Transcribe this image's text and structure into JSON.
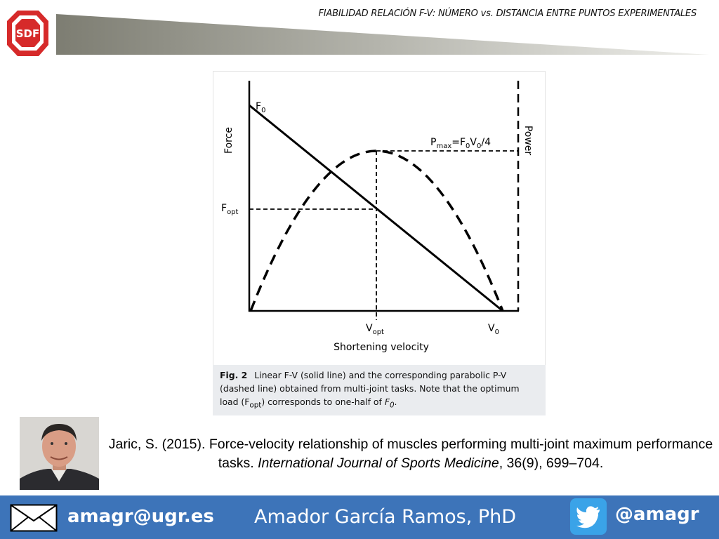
{
  "header": {
    "logo": "SDF",
    "title": "FIABILIDAD RELACIÓN F-V: NÚMERO vs. DISTANCIA ENTRE PUNTOS EXPERIMENTALES"
  },
  "figure": {
    "y_axis_label": "Force",
    "y2_axis_label": "Power",
    "x_axis_label": "Shortening velocity",
    "f0_label": [
      "F",
      "0"
    ],
    "fopt_label": [
      "F",
      "opt"
    ],
    "vopt_label": [
      "V",
      "opt"
    ],
    "v0_label": [
      "V",
      "0"
    ],
    "pmax_label": [
      "P",
      "max",
      "=F",
      "0",
      "V",
      "0",
      "/4"
    ],
    "caption": {
      "label": "Fig. 2",
      "parts": [
        "Linear F-V (solid line) and the corresponding parabolic P-V (dashed line) obtained from multi-joint tasks. Note that the optimum load (F",
        "opt",
        ") corresponds to one-half of ",
        "F",
        "0",
        "."
      ]
    }
  },
  "citation": [
    "Jaric, S. (2015). Force-velocity relationship of muscles performing multi-joint maximum performance tasks. ",
    "International Journal of Sports Medicine",
    ", 36(9), 699–704."
  ],
  "footer": {
    "email": "amagr@ugr.es",
    "name": "Amador García Ramos, PhD",
    "twitter": "@amagr"
  }
}
